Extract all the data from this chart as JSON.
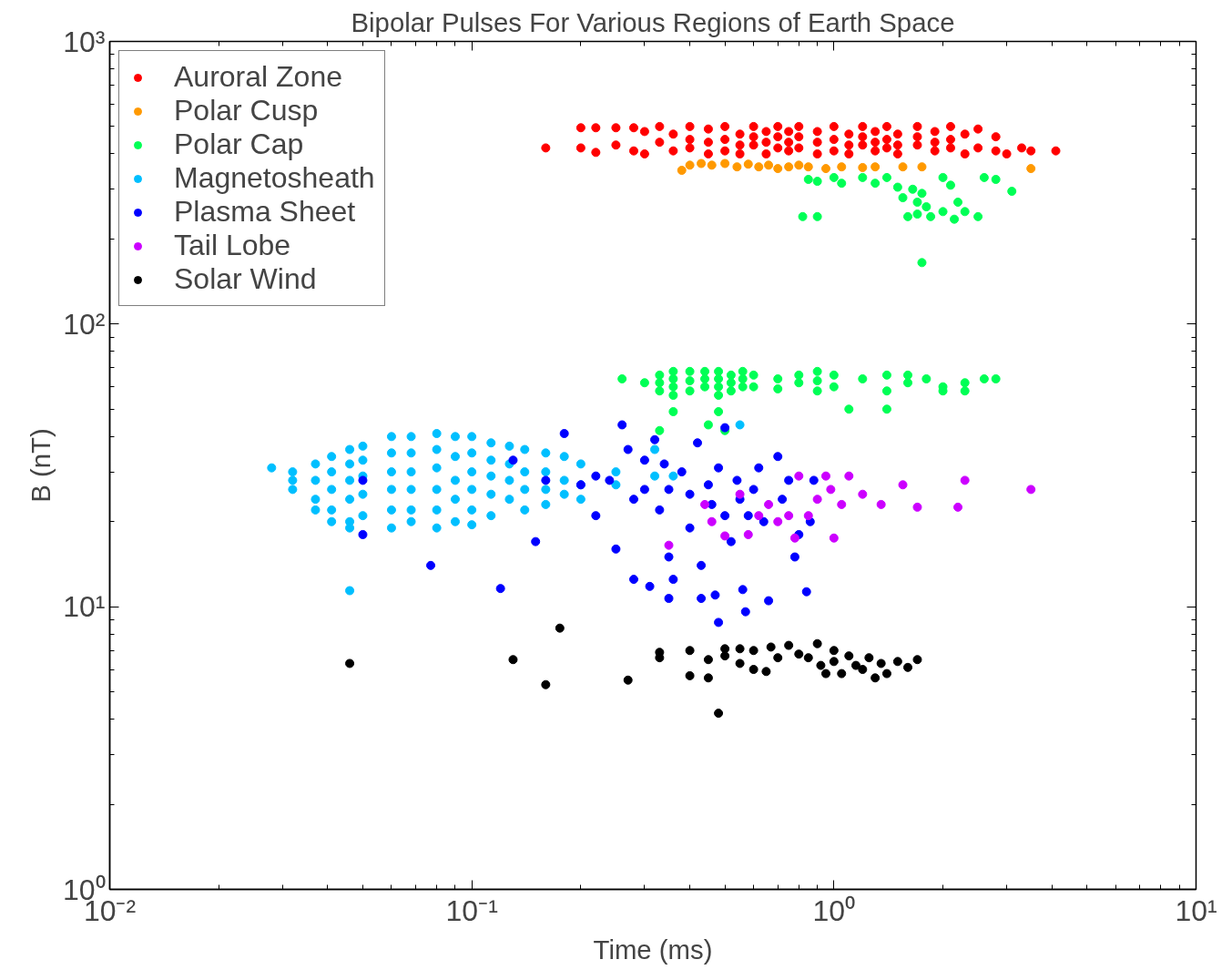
{
  "chart_data": {
    "type": "scatter",
    "title": "Bipolar Pulses For Various Regions of Earth Space",
    "xlabel": "Time (ms)",
    "ylabel": "B (nT)",
    "log": "xy",
    "grid": false,
    "legend": "top left",
    "marker": "circle",
    "xlim": [
      0.01,
      10
    ],
    "ylim": [
      1,
      1000
    ],
    "xticks": [
      {
        "value": 0.01,
        "label": "10⁻²"
      },
      {
        "value": 0.1,
        "label": "10⁻¹"
      },
      {
        "value": 1,
        "label": "10⁰"
      },
      {
        "value": 10,
        "label": "10¹"
      }
    ],
    "yticks": [
      {
        "value": 1,
        "label": "10⁰"
      },
      {
        "value": 10,
        "label": "10¹"
      },
      {
        "value": 100,
        "label": "10²"
      },
      {
        "value": 1000,
        "label": "10³"
      }
    ],
    "series": [
      {
        "name": "Auroral Zone",
        "color": "#ff0000",
        "x": [
          0.16,
          0.2,
          0.2,
          0.22,
          0.22,
          0.25,
          0.25,
          0.28,
          0.28,
          0.3,
          0.3,
          0.33,
          0.33,
          0.36,
          0.36,
          0.4,
          0.4,
          0.4,
          0.45,
          0.45,
          0.45,
          0.5,
          0.5,
          0.5,
          0.55,
          0.55,
          0.55,
          0.6,
          0.6,
          0.6,
          0.65,
          0.65,
          0.65,
          0.7,
          0.7,
          0.7,
          0.75,
          0.75,
          0.75,
          0.8,
          0.8,
          0.8,
          0.9,
          0.9,
          0.9,
          1.0,
          1.0,
          1.0,
          1.1,
          1.1,
          1.1,
          1.2,
          1.2,
          1.2,
          1.3,
          1.3,
          1.3,
          1.4,
          1.4,
          1.4,
          1.5,
          1.5,
          1.5,
          1.7,
          1.7,
          1.7,
          1.9,
          1.9,
          1.9,
          2.1,
          2.1,
          2.1,
          2.3,
          2.3,
          2.5,
          2.5,
          2.8,
          2.8,
          3.0,
          3.3,
          3.5,
          4.1
        ],
        "values": [
          420,
          495,
          420,
          495,
          405,
          495,
          430,
          495,
          410,
          480,
          400,
          500,
          440,
          470,
          410,
          500,
          450,
          420,
          490,
          440,
          400,
          500,
          450,
          410,
          470,
          430,
          400,
          500,
          460,
          430,
          480,
          440,
          400,
          500,
          460,
          420,
          480,
          440,
          410,
          500,
          460,
          420,
          480,
          440,
          400,
          500,
          450,
          410,
          470,
          430,
          400,
          500,
          460,
          430,
          480,
          440,
          410,
          500,
          450,
          420,
          470,
          430,
          400,
          500,
          460,
          430,
          480,
          440,
          410,
          500,
          450,
          420,
          470,
          400,
          490,
          420,
          460,
          410,
          400,
          420,
          410,
          410
        ]
      },
      {
        "name": "Polar Cusp",
        "color": "#ff9900",
        "x": [
          0.38,
          0.4,
          0.43,
          0.46,
          0.5,
          0.54,
          0.58,
          0.62,
          0.66,
          0.7,
          0.75,
          0.8,
          0.85,
          0.95,
          1.05,
          1.2,
          1.3,
          1.55,
          1.75,
          3.5
        ],
        "values": [
          350,
          365,
          370,
          365,
          370,
          360,
          368,
          360,
          365,
          355,
          360,
          365,
          360,
          355,
          360,
          358,
          360,
          360,
          360,
          355
        ]
      },
      {
        "name": "Polar Cap",
        "color": "#00ff55",
        "x": [
          0.85,
          0.9,
          1.0,
          1.05,
          1.2,
          1.3,
          1.4,
          1.5,
          1.55,
          1.65,
          1.7,
          1.75,
          1.8,
          2.0,
          2.1,
          2.2,
          2.3,
          2.6,
          2.8,
          3.1,
          0.82,
          0.9,
          1.6,
          1.7,
          1.85,
          2.15,
          2.5,
          1.75,
          2.0,
          0.26,
          0.3,
          0.33,
          0.33,
          0.33,
          0.36,
          0.36,
          0.36,
          0.36,
          0.4,
          0.4,
          0.4,
          0.44,
          0.44,
          0.44,
          0.48,
          0.48,
          0.48,
          0.48,
          0.52,
          0.52,
          0.52,
          0.56,
          0.56,
          0.56,
          0.6,
          0.6,
          0.7,
          0.7,
          0.8,
          0.8,
          0.9,
          0.9,
          0.9,
          1.0,
          1.0,
          1.2,
          1.4,
          1.4,
          1.6,
          1.6,
          1.8,
          2.0,
          2.0,
          2.3,
          2.3,
          2.6,
          2.8,
          0.36,
          0.48,
          0.33,
          0.5,
          1.1,
          1.4,
          0.45
        ],
        "values": [
          325,
          320,
          330,
          315,
          330,
          315,
          330,
          305,
          280,
          300,
          270,
          290,
          260,
          330,
          310,
          270,
          250,
          330,
          325,
          295,
          240,
          240,
          240,
          245,
          240,
          235,
          240,
          165,
          250,
          64,
          62,
          66,
          62,
          58,
          68,
          64,
          60,
          56,
          68,
          63,
          58,
          68,
          64,
          60,
          68,
          64,
          60,
          56,
          66,
          62,
          58,
          68,
          64,
          60,
          66,
          60,
          64,
          59,
          66,
          62,
          68,
          63,
          58,
          66,
          60,
          64,
          66,
          58,
          66,
          62,
          64,
          60,
          58,
          58,
          62,
          64,
          64,
          49,
          49,
          42,
          42,
          50,
          50,
          44
        ]
      },
      {
        "name": "Magnetosheath",
        "color": "#00bfff",
        "x": [
          0.028,
          0.032,
          0.032,
          0.032,
          0.037,
          0.037,
          0.037,
          0.037,
          0.041,
          0.041,
          0.041,
          0.041,
          0.041,
          0.046,
          0.046,
          0.046,
          0.046,
          0.046,
          0.046,
          0.05,
          0.05,
          0.05,
          0.05,
          0.05,
          0.06,
          0.06,
          0.06,
          0.06,
          0.06,
          0.06,
          0.068,
          0.068,
          0.068,
          0.068,
          0.068,
          0.068,
          0.08,
          0.08,
          0.08,
          0.08,
          0.08,
          0.08,
          0.09,
          0.09,
          0.09,
          0.09,
          0.09,
          0.1,
          0.1,
          0.1,
          0.1,
          0.1,
          0.113,
          0.113,
          0.113,
          0.113,
          0.113,
          0.127,
          0.127,
          0.127,
          0.127,
          0.14,
          0.14,
          0.14,
          0.14,
          0.16,
          0.16,
          0.16,
          0.16,
          0.18,
          0.18,
          0.18,
          0.2,
          0.2,
          0.2,
          0.25,
          0.25,
          0.32,
          0.32,
          0.046,
          0.1,
          0.55,
          0.36
        ],
        "values": [
          31,
          30,
          28,
          26,
          32,
          28,
          24,
          22,
          34,
          30,
          26,
          22,
          20,
          36,
          32,
          28,
          24,
          20,
          19,
          37,
          33,
          29,
          25,
          21,
          40,
          35,
          30,
          26,
          22,
          19,
          40,
          35,
          30,
          26,
          22,
          20,
          41,
          36,
          31,
          26,
          22,
          19,
          40,
          34,
          28,
          24,
          20,
          40,
          35,
          30,
          26,
          22,
          38,
          33,
          29,
          25,
          21,
          37,
          32,
          28,
          24,
          36,
          30,
          26,
          22,
          35,
          30,
          26,
          23,
          34,
          28,
          25,
          32,
          27,
          24,
          30,
          27,
          29,
          36,
          11.4,
          19.5,
          44,
          29
        ]
      },
      {
        "name": "Plasma Sheet",
        "color": "#0000ff",
        "x": [
          0.05,
          0.05,
          0.077,
          0.12,
          0.13,
          0.15,
          0.16,
          0.18,
          0.2,
          0.22,
          0.22,
          0.24,
          0.25,
          0.26,
          0.27,
          0.28,
          0.28,
          0.3,
          0.3,
          0.31,
          0.32,
          0.33,
          0.34,
          0.35,
          0.35,
          0.36,
          0.38,
          0.4,
          0.4,
          0.42,
          0.43,
          0.45,
          0.46,
          0.47,
          0.48,
          0.5,
          0.5,
          0.52,
          0.54,
          0.55,
          0.56,
          0.58,
          0.6,
          0.62,
          0.64,
          0.66,
          0.7,
          0.72,
          0.75,
          0.78,
          0.8,
          0.84,
          0.86,
          0.88,
          0.48,
          0.57,
          0.35,
          0.43
        ],
        "values": [
          28,
          18,
          14,
          11.6,
          33,
          17,
          28,
          41,
          27,
          29,
          21,
          28,
          16,
          44,
          36,
          24,
          12.5,
          33,
          26,
          11.8,
          39,
          22,
          32,
          26,
          15,
          12.5,
          30,
          25,
          19,
          38,
          14,
          27,
          23,
          11,
          31,
          43,
          21,
          17,
          28,
          24,
          11.5,
          21,
          26,
          31,
          20,
          10.5,
          34,
          24,
          28,
          15,
          18,
          11.3,
          20,
          28,
          8.8,
          9.6,
          10.7,
          10.7
        ]
      },
      {
        "name": "Tail Lobe",
        "color": "#cc00ff",
        "x": [
          0.35,
          0.44,
          0.46,
          0.5,
          0.55,
          0.58,
          0.62,
          0.66,
          0.7,
          0.75,
          0.78,
          0.8,
          0.85,
          0.9,
          0.95,
          1.0,
          1.05,
          1.1,
          1.2,
          1.35,
          1.55,
          1.7,
          2.2,
          2.3,
          3.5,
          0.98
        ],
        "values": [
          16.5,
          23,
          20,
          17.8,
          25,
          18,
          21,
          23,
          20,
          21,
          17.5,
          29,
          21,
          24,
          29,
          17.5,
          23,
          29,
          25,
          23,
          27,
          22.5,
          22.5,
          28,
          26,
          26
        ]
      },
      {
        "name": "Solar Wind",
        "color": "#000000",
        "x": [
          0.046,
          0.13,
          0.16,
          0.175,
          0.27,
          0.33,
          0.33,
          0.4,
          0.4,
          0.45,
          0.45,
          0.48,
          0.5,
          0.5,
          0.55,
          0.55,
          0.6,
          0.6,
          0.65,
          0.67,
          0.7,
          0.75,
          0.8,
          0.85,
          0.9,
          0.92,
          0.95,
          1.0,
          1.0,
          1.05,
          1.1,
          1.15,
          1.2,
          1.25,
          1.3,
          1.35,
          1.4,
          1.5,
          1.6,
          1.7
        ],
        "values": [
          6.3,
          6.5,
          5.3,
          8.4,
          5.5,
          6.9,
          6.6,
          7.0,
          5.7,
          6.5,
          5.6,
          4.2,
          7.1,
          6.7,
          7.1,
          6.3,
          7.0,
          6.0,
          5.9,
          7.2,
          6.6,
          7.3,
          6.8,
          6.6,
          7.4,
          6.2,
          5.8,
          7.0,
          6.4,
          5.8,
          6.7,
          6.2,
          6.0,
          6.6,
          5.6,
          6.3,
          5.8,
          6.4,
          6.1,
          6.5
        ]
      }
    ]
  }
}
